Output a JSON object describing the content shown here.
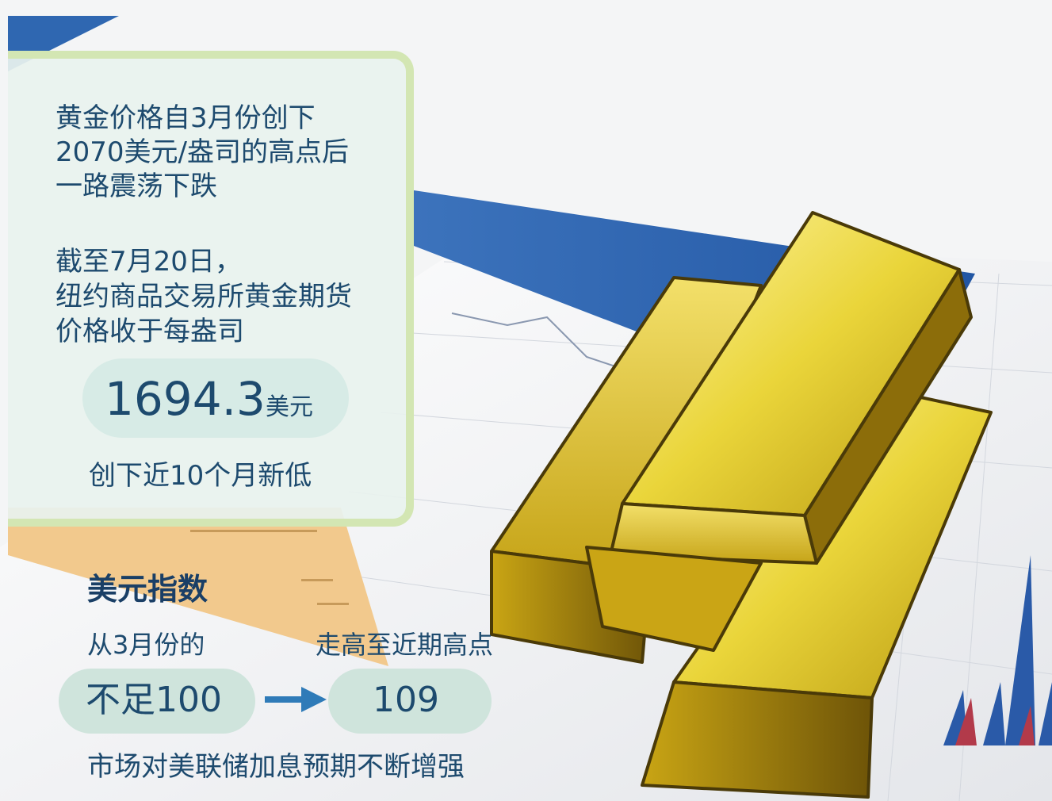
{
  "gold_panel": {
    "headline_lines": [
      "黄金价格自3月份创下",
      "2070美元/盎司的高点后",
      "一路震荡下跌"
    ],
    "asof_lines": [
      "截至7月20日，",
      "纽约商品交易所黄金期货",
      "价格收于每盎司"
    ],
    "price_value": "1694.3",
    "price_unit": "美元",
    "new_low_text": "创下近10个月新低"
  },
  "dollar_index": {
    "title": "美元指数",
    "from_label": "从3月份的",
    "to_label": "走高至近期高点",
    "from_value": "不足100",
    "to_value": "109",
    "caption": "市场对美联储加息预期不断增强"
  },
  "colors": {
    "text": "#1d4a6e",
    "card_border": "#d3e6b3",
    "pill": "#cfe4dc",
    "arrow": "#2f7bb8",
    "gold": "#e3c42a",
    "blue_wedge": "#2f67b1"
  }
}
